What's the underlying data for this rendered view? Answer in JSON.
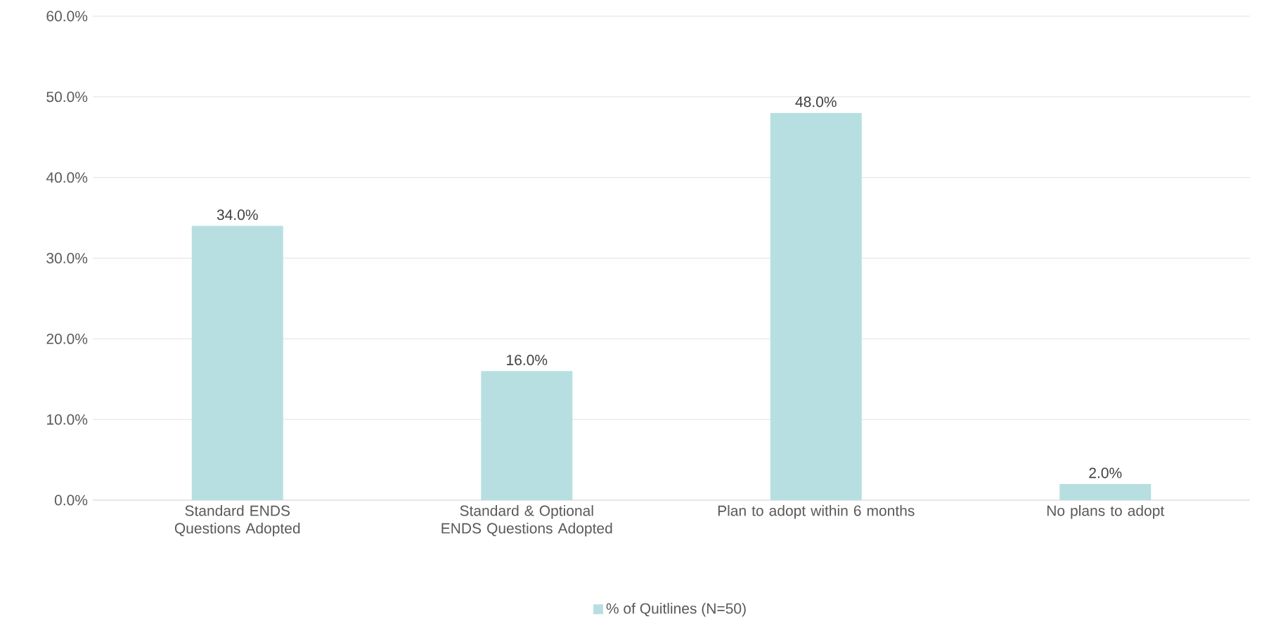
{
  "chart_data": {
    "type": "bar",
    "categories": [
      "Standard ENDS Questions Adopted",
      "Standard & Optional ENDS Questions Adopted",
      "Plan to adopt within 6 months",
      "No plans to adopt"
    ],
    "series": [
      {
        "name": "% of Quitlines (N=50)",
        "color": "#b7dfe1",
        "values": [
          34.0,
          16.0,
          48.0,
          2.0
        ],
        "value_labels": [
          "34.0%",
          "16.0%",
          "48.0%",
          "2.0%"
        ]
      }
    ],
    "ylim": [
      0,
      60
    ],
    "yticks": [
      {
        "value": 0,
        "label": "0.0%"
      },
      {
        "value": 10,
        "label": "10.0%"
      },
      {
        "value": 20,
        "label": "20.0%"
      },
      {
        "value": 30,
        "label": "30.0%"
      },
      {
        "value": 40,
        "label": "40.0%"
      },
      {
        "value": 50,
        "label": "50.0%"
      },
      {
        "value": 60,
        "label": "60.0%"
      }
    ],
    "grid": "y",
    "legend": "bottom"
  }
}
